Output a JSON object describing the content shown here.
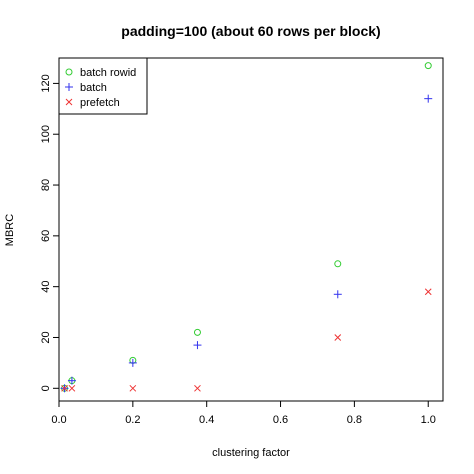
{
  "chart_data": {
    "type": "scatter",
    "title": "padding=100 (about 60 rows per block)",
    "xlabel": "clustering factor",
    "ylabel": "MBRC",
    "xlim": [
      0.0,
      1.04
    ],
    "ylim": [
      -5,
      130
    ],
    "xticks": [
      0.0,
      0.2,
      0.4,
      0.6,
      0.8,
      1.0
    ],
    "xtick_labels": [
      "0.0",
      "0.2",
      "0.4",
      "0.6",
      "0.8",
      "1.0"
    ],
    "yticks": [
      0,
      20,
      40,
      60,
      80,
      100,
      120
    ],
    "ytick_labels": [
      "0",
      "20",
      "40",
      "60",
      "80",
      "100",
      "120"
    ],
    "grid": false,
    "legend_position": "top-left",
    "series": [
      {
        "name": "batch rowid",
        "marker": "circle",
        "color": "#33cc33",
        "x": [
          0.015,
          0.035,
          0.2,
          0.375,
          0.755,
          1.0
        ],
        "y": [
          0,
          3,
          11,
          22,
          49,
          127
        ]
      },
      {
        "name": "batch",
        "marker": "plus",
        "color": "#3333ee",
        "x": [
          0.015,
          0.035,
          0.2,
          0.375,
          0.755,
          1.0
        ],
        "y": [
          0,
          3,
          10,
          17,
          37,
          114
        ]
      },
      {
        "name": "prefetch",
        "marker": "cross",
        "color": "#ee3333",
        "x": [
          0.015,
          0.035,
          0.2,
          0.375,
          0.755,
          1.0
        ],
        "y": [
          0,
          0,
          0,
          0,
          20,
          38
        ]
      }
    ]
  }
}
